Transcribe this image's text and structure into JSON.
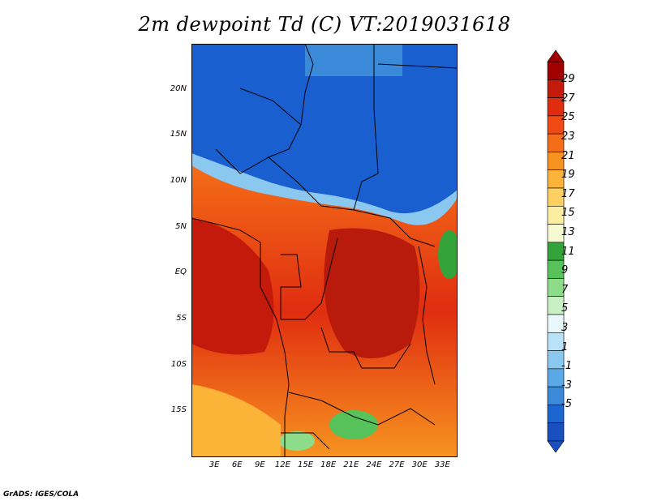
{
  "title": "2m dewpoint Td (C) VT:2019031618",
  "footer": "GrADS: IGES/COLA",
  "map": {
    "lat_labels": [
      "20N",
      "15N",
      "10N",
      "5N",
      "EQ",
      "5S",
      "10S",
      "15S"
    ],
    "lat_values": [
      20,
      15,
      10,
      5,
      0,
      -5,
      -10,
      -15
    ],
    "lon_labels": [
      "3E",
      "6E",
      "9E",
      "12E",
      "15E",
      "18E",
      "21E",
      "24E",
      "27E",
      "30E",
      "33E"
    ],
    "lon_values": [
      3,
      6,
      9,
      12,
      15,
      18,
      21,
      24,
      27,
      30,
      33
    ],
    "extent": {
      "lon_min": 0,
      "lon_max": 35,
      "lat_min": -20,
      "lat_max": 25
    }
  },
  "colorbar": {
    "labels": [
      "29",
      "27",
      "25",
      "23",
      "21",
      "19",
      "17",
      "15",
      "13",
      "11",
      "9",
      "7",
      "5",
      "3",
      "1",
      "-1",
      "-3",
      "-5"
    ],
    "colors": [
      "#a00000",
      "#c41a0c",
      "#e02d10",
      "#f04a14",
      "#f46d18",
      "#f79420",
      "#fbb338",
      "#fdd061",
      "#fbeea0",
      "#f5fad0",
      "#33a33a",
      "#57c25a",
      "#8ddc8a",
      "#c8f0c4",
      "#eaf7fb",
      "#b9e2f6",
      "#8ac8f0",
      "#5aa8e6",
      "#3a8ad9",
      "#1e66cf",
      "#1a4fbf"
    ]
  }
}
